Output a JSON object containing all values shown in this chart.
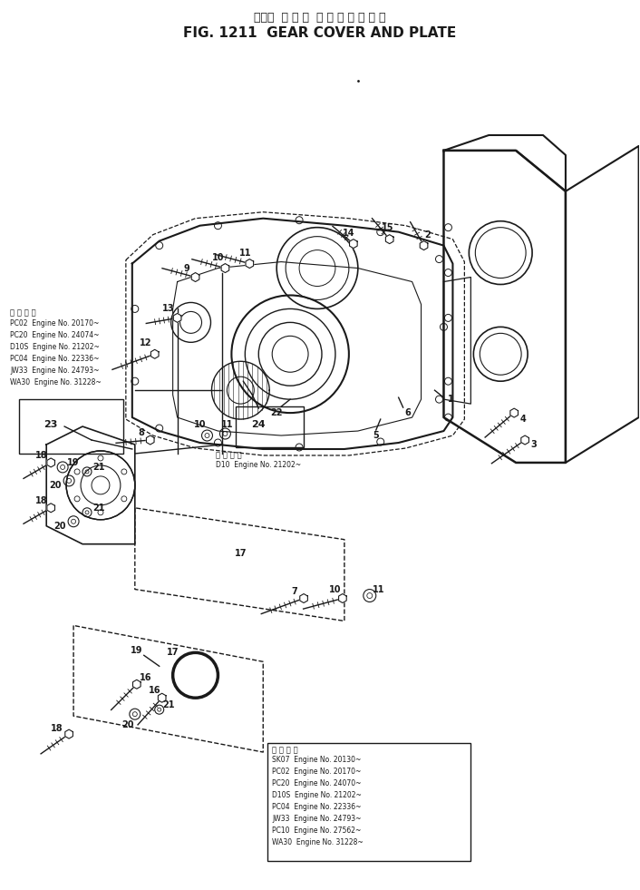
{
  "title_jp": "ギヤー  カ バ ー  お よ び プ レ ー ト",
  "title_en": "FIG. 1211  GEAR COVER AND PLATE",
  "bg_color": "#ffffff",
  "lc": "#1a1a1a",
  "fig_width": 7.06,
  "fig_height": 9.81,
  "dpi": 100,
  "app_text1": [
    "適 用 号 番",
    "PC02  Engine No. 20170~",
    "PC20  Engine No. 24074~",
    "D10S  Engine No. 21202~",
    "PC04  Engine No. 22336~",
    "JW33  Engine No. 24793~",
    "WA30  Engine No. 31228~"
  ],
  "app_text2": [
    "適 用 号 番",
    "D10  Engine No. 21202~"
  ],
  "app_text3": [
    "適 用 号 番",
    "SK07  Engine No. 20130~",
    "PC02  Engine No. 20170~",
    "PC20  Engine No. 24070~",
    "D10S  Engine No. 21202~",
    "PC04  Engine No. 22336~",
    "JW33  Engine No. 24793~",
    "PC10  Engine No. 27562~",
    "WA30  Engine No. 31228~"
  ]
}
